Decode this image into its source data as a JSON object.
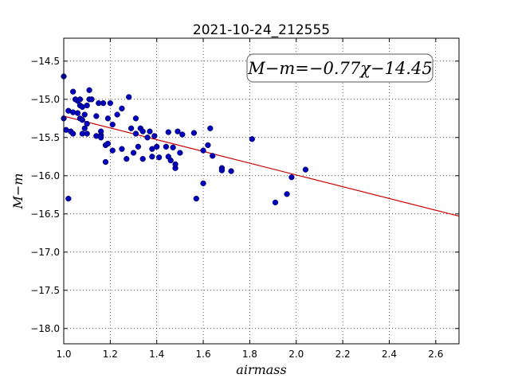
{
  "chart_data": {
    "type": "scatter",
    "title": "2021-10-24_212555",
    "xlabel": "airmass",
    "ylabel": "M−m",
    "xlim": [
      1.0,
      2.7
    ],
    "ylim": [
      -18.2,
      -14.2
    ],
    "y_inverted": true,
    "grid": true,
    "xticks": [
      1.0,
      1.2,
      1.4,
      1.6,
      1.8,
      2.0,
      2.2,
      2.4,
      2.6
    ],
    "xtick_labels": [
      "1.0",
      "1.2",
      "1.4",
      "1.6",
      "1.8",
      "2.0",
      "2.2",
      "2.4",
      "2.6"
    ],
    "yticks": [
      -14.5,
      -15.0,
      -15.5,
      -16.0,
      -16.5,
      -17.0,
      -17.5,
      -18.0
    ],
    "ytick_labels": [
      "−14.5",
      "−15.0",
      "−15.5",
      "−16.0",
      "−16.5",
      "−17.0",
      "−17.5",
      "−18.0"
    ],
    "annotation": "M−m=−0.77χ−14.45",
    "fit": {
      "slope": -0.77,
      "intercept": -14.45,
      "color": "#cc0000"
    },
    "marker_color": "#0000bb",
    "points": [
      [
        1.0,
        -14.7
      ],
      [
        1.0,
        -15.25
      ],
      [
        1.01,
        -15.4
      ],
      [
        1.02,
        -15.15
      ],
      [
        1.02,
        -16.3
      ],
      [
        1.03,
        -15.42
      ],
      [
        1.04,
        -15.17
      ],
      [
        1.04,
        -15.45
      ],
      [
        1.04,
        -14.9
      ],
      [
        1.05,
        -15.0
      ],
      [
        1.06,
        -15.02
      ],
      [
        1.06,
        -15.18
      ],
      [
        1.07,
        -15.0
      ],
      [
        1.07,
        -15.08
      ],
      [
        1.07,
        -15.25
      ],
      [
        1.08,
        -15.1
      ],
      [
        1.08,
        -15.45
      ],
      [
        1.08,
        -15.27
      ],
      [
        1.09,
        -15.2
      ],
      [
        1.09,
        -15.38
      ],
      [
        1.1,
        -15.08
      ],
      [
        1.1,
        -15.32
      ],
      [
        1.1,
        -15.45
      ],
      [
        1.11,
        -15.0
      ],
      [
        1.11,
        -14.88
      ],
      [
        1.12,
        -15.0
      ],
      [
        1.14,
        -15.22
      ],
      [
        1.14,
        -15.48
      ],
      [
        1.15,
        -15.05
      ],
      [
        1.16,
        -15.42
      ],
      [
        1.16,
        -15.47
      ],
      [
        1.16,
        -15.5
      ],
      [
        1.17,
        -15.05
      ],
      [
        1.18,
        -15.6
      ],
      [
        1.18,
        -15.82
      ],
      [
        1.19,
        -15.58
      ],
      [
        1.19,
        -15.25
      ],
      [
        1.2,
        -15.05
      ],
      [
        1.21,
        -15.33
      ],
      [
        1.21,
        -15.67
      ],
      [
        1.23,
        -15.2
      ],
      [
        1.25,
        -15.65
      ],
      [
        1.25,
        -15.12
      ],
      [
        1.27,
        -15.78
      ],
      [
        1.28,
        -14.97
      ],
      [
        1.29,
        -15.38
      ],
      [
        1.3,
        -15.7
      ],
      [
        1.31,
        -15.25
      ],
      [
        1.31,
        -15.45
      ],
      [
        1.32,
        -15.62
      ],
      [
        1.33,
        -15.38
      ],
      [
        1.34,
        -15.42
      ],
      [
        1.34,
        -15.78
      ],
      [
        1.36,
        -15.5
      ],
      [
        1.37,
        -15.42
      ],
      [
        1.38,
        -15.75
      ],
      [
        1.38,
        -15.65
      ],
      [
        1.39,
        -15.48
      ],
      [
        1.4,
        -15.62
      ],
      [
        1.41,
        -15.76
      ],
      [
        1.44,
        -15.62
      ],
      [
        1.45,
        -15.75
      ],
      [
        1.45,
        -15.43
      ],
      [
        1.46,
        -15.8
      ],
      [
        1.47,
        -15.63
      ],
      [
        1.48,
        -15.85
      ],
      [
        1.48,
        -15.9
      ],
      [
        1.49,
        -15.42
      ],
      [
        1.5,
        -15.7
      ],
      [
        1.51,
        -15.46
      ],
      [
        1.56,
        -15.44
      ],
      [
        1.57,
        -16.3
      ],
      [
        1.6,
        -15.67
      ],
      [
        1.6,
        -16.1
      ],
      [
        1.62,
        -15.6
      ],
      [
        1.63,
        -15.38
      ],
      [
        1.64,
        -15.74
      ],
      [
        1.68,
        -15.9
      ],
      [
        1.68,
        -15.93
      ],
      [
        1.72,
        -15.94
      ],
      [
        1.81,
        -15.52
      ],
      [
        1.91,
        -16.35
      ],
      [
        1.96,
        -16.24
      ],
      [
        1.98,
        -16.02
      ],
      [
        2.04,
        -15.92
      ]
    ]
  }
}
